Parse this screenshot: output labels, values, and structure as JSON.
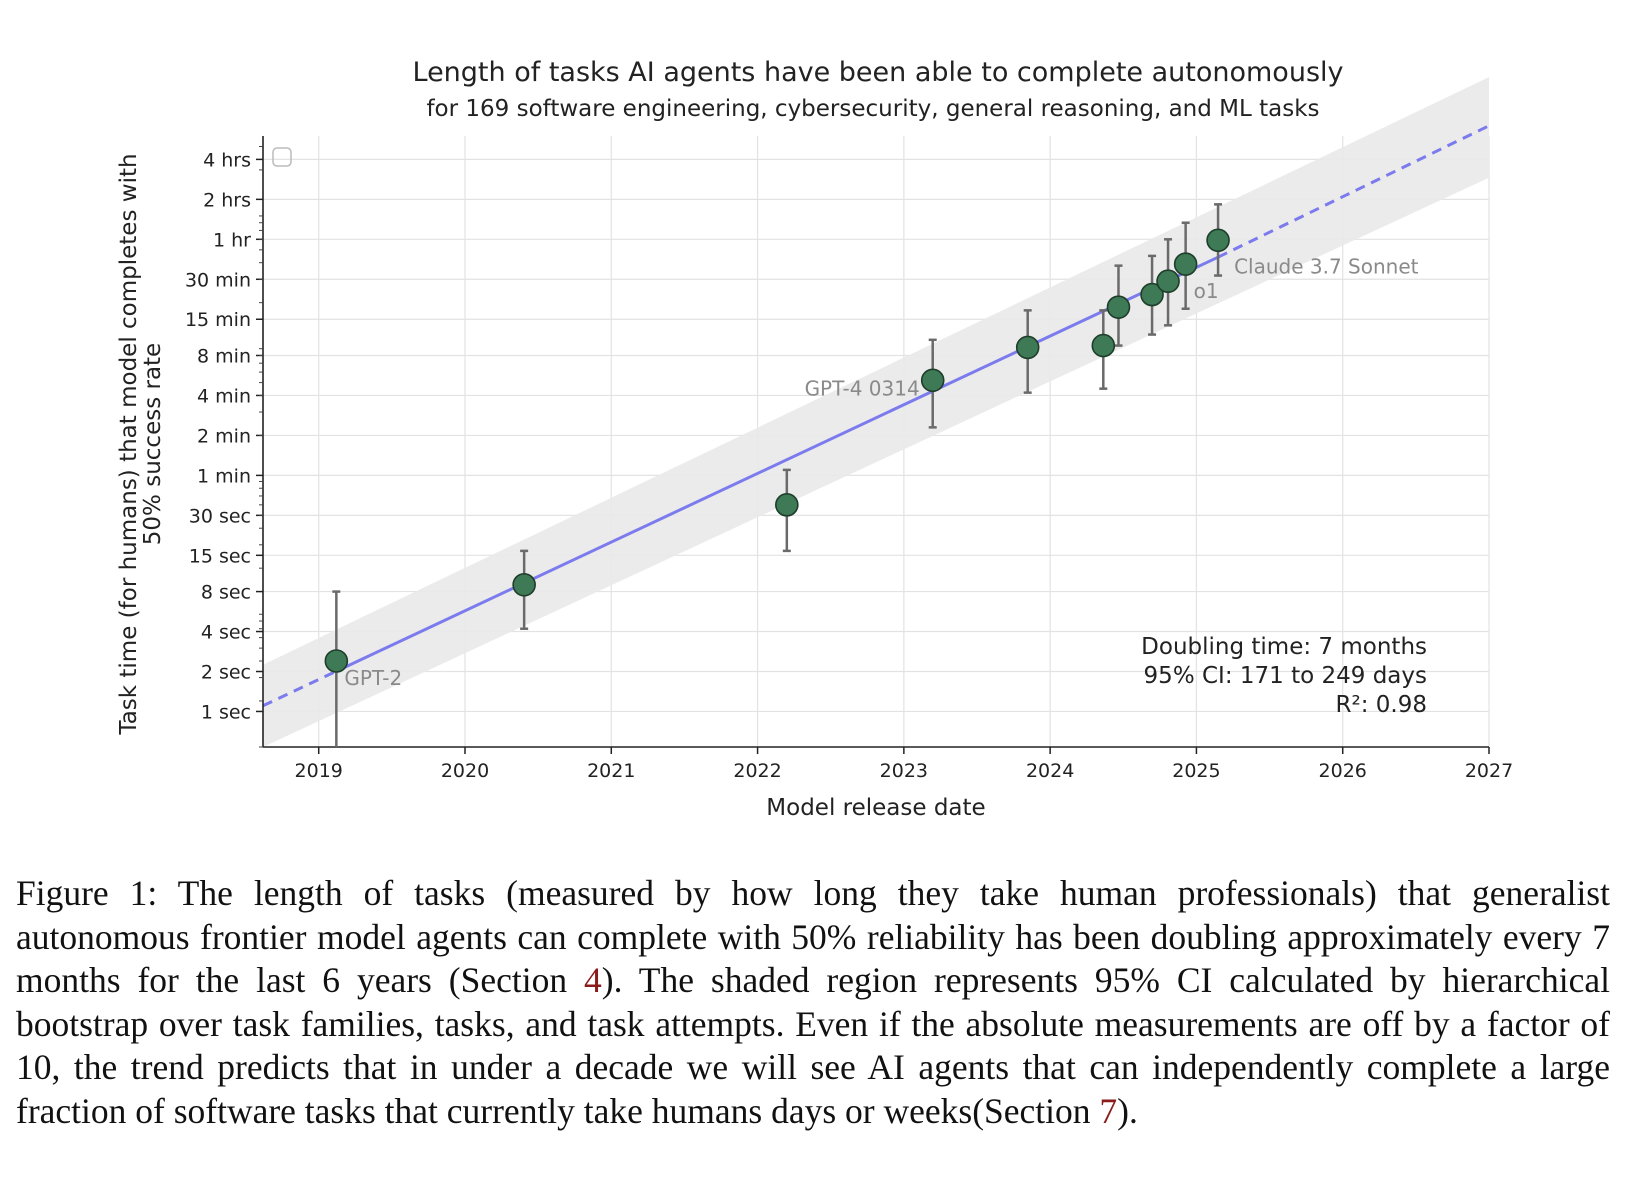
{
  "chart_data": {
    "type": "scatter",
    "title": "Length of tasks AI agents have been able to complete autonomously",
    "subtitle": "for 169 software engineering, cybersecurity, general reasoning, and ML tasks",
    "xlabel": "Model release date",
    "ylabel": [
      "Task time (for humans) that model completes with",
      "50% success rate"
    ],
    "x_ticks": [
      "2019",
      "2020",
      "2021",
      "2022",
      "2023",
      "2024",
      "2025",
      "2026",
      "2027"
    ],
    "xlim": [
      "2018-08-15",
      "2027-01-01"
    ],
    "y_scale": "log",
    "y_unit": "minutes",
    "ylim_minutes": [
      0.009,
      360
    ],
    "y_ticks": [
      {
        "label": "1 sec",
        "minutes": 0.01667
      },
      {
        "label": "2 sec",
        "minutes": 0.03333
      },
      {
        "label": "4 sec",
        "minutes": 0.06667
      },
      {
        "label": "8 sec",
        "minutes": 0.1333
      },
      {
        "label": "15 sec",
        "minutes": 0.25
      },
      {
        "label": "30 sec",
        "minutes": 0.5
      },
      {
        "label": "1 min",
        "minutes": 1
      },
      {
        "label": "2 min",
        "minutes": 2
      },
      {
        "label": "4 min",
        "minutes": 4
      },
      {
        "label": "8 min",
        "minutes": 8
      },
      {
        "label": "15 min",
        "minutes": 15
      },
      {
        "label": "30 min",
        "minutes": 30
      },
      {
        "label": "1 hr",
        "minutes": 60
      },
      {
        "label": "2 hrs",
        "minutes": 120
      },
      {
        "label": "4 hrs",
        "minutes": 240
      }
    ],
    "grid": true,
    "points": [
      {
        "label": "GPT-2",
        "date": "2019-02-14",
        "minutes": 0.04,
        "ci_low": 0.009,
        "ci_high": 0.1333
      },
      {
        "label": "",
        "date": "2020-05-28",
        "minutes": 0.15,
        "ci_low": 0.07,
        "ci_high": 0.27
      },
      {
        "label": "",
        "date": "2022-03-15",
        "minutes": 0.6,
        "ci_low": 0.27,
        "ci_high": 1.1
      },
      {
        "label": "GPT-4 0314",
        "date": "2023-03-14",
        "minutes": 5.2,
        "ci_low": 2.3,
        "ci_high": 10.5
      },
      {
        "label": "",
        "date": "2023-11-06",
        "minutes": 9.2,
        "ci_low": 4.2,
        "ci_high": 17.5
      },
      {
        "label": "",
        "date": "2024-05-13",
        "minutes": 9.5,
        "ci_low": 4.5,
        "ci_high": 17.5
      },
      {
        "label": "",
        "date": "2024-06-20",
        "minutes": 18.5,
        "ci_low": 9.5,
        "ci_high": 38
      },
      {
        "label": "",
        "date": "2024-09-12",
        "minutes": 23,
        "ci_low": 11.5,
        "ci_high": 45
      },
      {
        "label": "",
        "date": "2024-10-22",
        "minutes": 29,
        "ci_low": 13.5,
        "ci_high": 60
      },
      {
        "label": "o1",
        "date": "2024-12-05",
        "minutes": 39,
        "ci_low": 18,
        "ci_high": 80
      },
      {
        "label": "Claude 3.7 Sonnet",
        "date": "2025-02-24",
        "minutes": 59,
        "ci_low": 32,
        "ci_high": 110
      }
    ],
    "trend": {
      "anchors": [
        {
          "date": "2018-08-15",
          "minutes": 0.0184
        },
        {
          "date": "2019-02-14",
          "minutes": 0.0335
        },
        {
          "date": "2025-02-24",
          "minutes": 44
        },
        {
          "date": "2027-01-01",
          "minutes": 430
        }
      ],
      "solid_range": [
        "2019-02-14",
        "2025-02-24"
      ],
      "ci_band_at_start": [
        0.009,
        0.0375
      ],
      "ci_band_at_end": [
        175,
        1000
      ]
    },
    "stats": [
      "Doubling time: 7 months",
      "95% CI: 171 to 249 days",
      "R²: 0.98"
    ],
    "colors": {
      "marker": "#3d7a55",
      "trend": "#7b7bee",
      "band": "#e9e9e9",
      "errorbar": "#6a6a6a"
    }
  },
  "caption": {
    "part1": "Figure 1: The length of tasks (measured by how long they take human professionals) that generalist autonomous frontier model agents can complete with 50% reliability has been doubling approximately every 7 months for the last 6 years (Section ",
    "ref1": "4",
    "part2": ").  The shaded region represents 95% CI calculated by hierarchical bootstrap over task families, tasks, and task attempts. Even if the absolute measurements are off by a factor of 10, the trend predicts that in under a decade we will see AI agents that can independently complete a large fraction of software tasks that currently take humans days or weeks(Section ",
    "ref2": "7",
    "part3": ")."
  }
}
